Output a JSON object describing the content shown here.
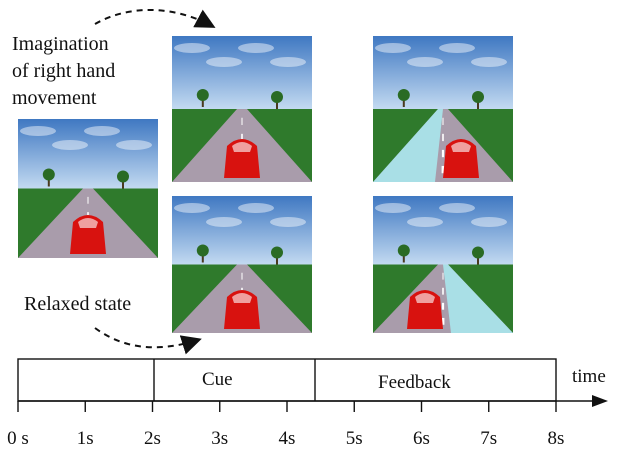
{
  "labels": {
    "imagination": [
      "Imagination",
      "of right hand",
      "movement"
    ],
    "relaxed": "Relaxed state",
    "phase_cue": "Cue",
    "phase_feedback": "Feedback",
    "axis_name": "time"
  },
  "ticks": [
    "0 s",
    "1s",
    "2s",
    "3s",
    "4s",
    "5s",
    "6s",
    "7s",
    "8s"
  ],
  "panels": [
    {
      "name": "scene-initial",
      "lane": "none",
      "car": "center"
    },
    {
      "name": "scene-imagination-cue",
      "lane": "none",
      "car": "center"
    },
    {
      "name": "scene-relaxed-cue",
      "lane": "none",
      "car": "center"
    },
    {
      "name": "scene-imagination-feedback",
      "lane": "left",
      "car": "right"
    },
    {
      "name": "scene-relaxed-feedback",
      "lane": "right",
      "car": "left"
    }
  ],
  "colors": {
    "sky_top": "#3f78c2",
    "sky_bottom": "#b9d3ee",
    "grass": "#2f7a2c",
    "road": "#a99cab",
    "highlight_lane": "#a9dfe6",
    "car": "#d8120f",
    "line": "#111111"
  }
}
